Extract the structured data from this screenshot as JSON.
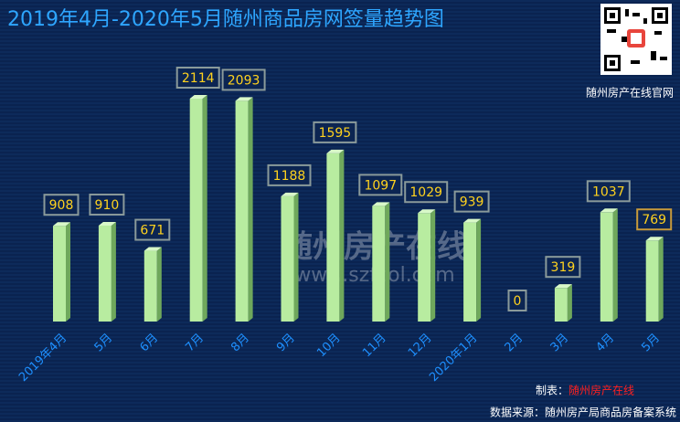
{
  "chart_data": {
    "type": "bar",
    "title": "2019年4月-2020年5月随州商品房网签量趋势图",
    "categories": [
      "2019年4月",
      "5月",
      "6月",
      "7月",
      "8月",
      "9月",
      "10月",
      "11月",
      "12月",
      "2020年1月",
      "2月",
      "3月",
      "4月",
      "5月"
    ],
    "values": [
      908,
      910,
      671,
      2114,
      2093,
      1188,
      1595,
      1097,
      1029,
      939,
      0,
      319,
      1037,
      769
    ],
    "color": "#b8eca0"
  },
  "watermark": {
    "brand": "随州房产在线",
    "url": "www.szfcol.com"
  },
  "qr_caption": "随州房产在线官网",
  "footer": {
    "made_by_label": "制表：",
    "made_by": "随州房产在线",
    "source": "数据来源：随州房产局商品房备案系统"
  }
}
